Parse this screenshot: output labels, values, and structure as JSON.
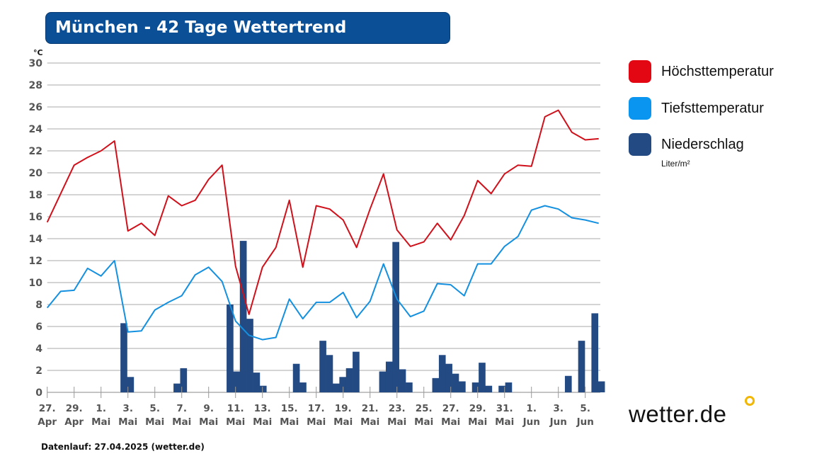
{
  "title": "München - 42 Tage Wettertrend",
  "footer": "Datenlauf: 27.04.2025 (wetter.de)",
  "logo": "wetter.de",
  "legend": [
    {
      "label": "Höchsttemperatur",
      "color": "#e30613"
    },
    {
      "label": "Tiefsttemperatur",
      "color": "#0a96f0"
    },
    {
      "label": "Niederschlag",
      "color": "#234a82",
      "unit": "Liter/m²"
    }
  ],
  "chart_data": {
    "type": "line",
    "title": "München - 42 Tage Wettertrend",
    "ylabel": "°C",
    "ylim": [
      0,
      30
    ],
    "yticks": [
      0,
      2,
      4,
      6,
      8,
      10,
      12,
      14,
      16,
      18,
      20,
      22,
      24,
      26,
      28,
      30
    ],
    "grid": true,
    "legend_position": "right",
    "x_tick_labels": [
      [
        "27.",
        "Apr"
      ],
      [
        "29.",
        "Apr"
      ],
      [
        "1.",
        "Mai"
      ],
      [
        "3.",
        "Mai"
      ],
      [
        "5.",
        "Mai"
      ],
      [
        "7.",
        "Mai"
      ],
      [
        "9.",
        "Mai"
      ],
      [
        "11.",
        "Mai"
      ],
      [
        "13.",
        "Mai"
      ],
      [
        "15.",
        "Mai"
      ],
      [
        "17.",
        "Mai"
      ],
      [
        "19.",
        "Mai"
      ],
      [
        "21.",
        "Mai"
      ],
      [
        "23.",
        "Mai"
      ],
      [
        "25.",
        "Mai"
      ],
      [
        "27.",
        "Mai"
      ],
      [
        "29.",
        "Mai"
      ],
      [
        "31.",
        "Mai"
      ],
      [
        "1.",
        "Jun"
      ],
      [
        "3.",
        "Jun"
      ],
      [
        "5.",
        "Jun"
      ]
    ],
    "series": [
      {
        "name": "Höchsttemperatur",
        "type": "line",
        "color": "#d0101a",
        "values": [
          15.5,
          18.1,
          20.7,
          21.4,
          22.0,
          22.9,
          14.7,
          15.4,
          14.3,
          17.9,
          17.0,
          17.5,
          19.4,
          20.7,
          11.5,
          7.1,
          11.4,
          13.2,
          17.5,
          11.4,
          17.0,
          16.7,
          15.7,
          13.2,
          16.7,
          19.9,
          14.8,
          13.3,
          13.7,
          15.4,
          13.9,
          16.1,
          19.3,
          18.1,
          19.9,
          20.7,
          20.6,
          25.1,
          25.7,
          23.7,
          23.0,
          23.1
        ]
      },
      {
        "name": "Tiefsttemperatur",
        "type": "line",
        "color": "#1490e0",
        "values": [
          7.7,
          9.2,
          9.3,
          11.3,
          10.6,
          12.0,
          5.5,
          5.6,
          7.5,
          8.2,
          8.8,
          10.7,
          11.4,
          10.1,
          6.5,
          5.2,
          4.8,
          5.0,
          8.5,
          6.7,
          8.2,
          8.2,
          9.1,
          6.8,
          8.3,
          11.7,
          8.5,
          6.9,
          7.4,
          9.9,
          9.8,
          8.8,
          11.7,
          11.7,
          13.3,
          14.2,
          16.6,
          17.0,
          16.7,
          15.9,
          15.7,
          15.4
        ]
      },
      {
        "name": "Niederschlag",
        "type": "bar",
        "unit": "Liter/m²",
        "color": "#234a82",
        "values": [
          0,
          0,
          0,
          0,
          0,
          0,
          0,
          0,
          0,
          0,
          0,
          0,
          6.3,
          1.4,
          0,
          0,
          0,
          0,
          0,
          0,
          0.8,
          2.2,
          0,
          0,
          0,
          0,
          0,
          0,
          8.0,
          1.9,
          13.8,
          6.7,
          1.8,
          0.6,
          0,
          0,
          0,
          0,
          2.6,
          0.9,
          0,
          0,
          4.7,
          3.4,
          0.8,
          1.4,
          2.2,
          3.7,
          0,
          0,
          0,
          1.9,
          2.8,
          13.7,
          2.1,
          0.9,
          0,
          0,
          0,
          1.3,
          3.4,
          2.6,
          1.7,
          1.0,
          0,
          0.9,
          2.7,
          0.6,
          0,
          0.6,
          0.9,
          0,
          0,
          0,
          0,
          0,
          0,
          0,
          0,
          1.5,
          0,
          4.7,
          0,
          7.2,
          1.0
        ]
      }
    ]
  }
}
